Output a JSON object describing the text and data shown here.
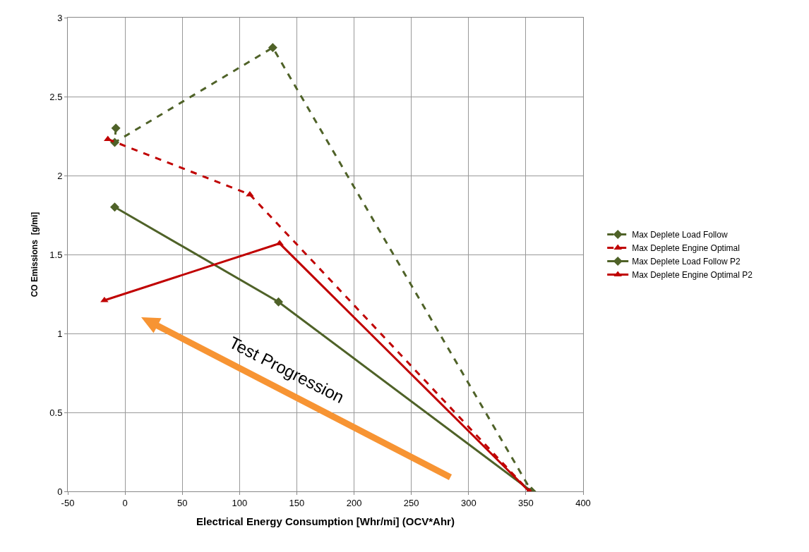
{
  "chart_data": {
    "type": "line",
    "xlabel": "Electrical Energy Consumption [Whr/mi] (OCV*Ahr)",
    "ylabel": "CO Emissions  [g/mi]",
    "xlim": [
      -50,
      400
    ],
    "xticks": [
      -50,
      0,
      50,
      100,
      150,
      200,
      250,
      300,
      350,
      400
    ],
    "ylim": [
      0,
      3
    ],
    "yticks": [
      0,
      0.5,
      1,
      1.5,
      2,
      2.5,
      3
    ],
    "grid": true,
    "legend": "right",
    "series": [
      {
        "name": "Max Deplete Load Follow",
        "color": "#4f6228",
        "marker": "diamond",
        "line_style": "dashed",
        "x": [
          -8,
          -9,
          129,
          355
        ],
        "values": [
          2.3,
          2.21,
          2.81,
          0
        ]
      },
      {
        "name": "Max Deplete Engine Optimal",
        "color": "#c00000",
        "marker": "triangle",
        "line_style": "dashed",
        "x": [
          -15,
          109,
          353
        ],
        "values": [
          2.23,
          1.88,
          0
        ]
      },
      {
        "name": "Max Deplete Load Follow P2",
        "color": "#4f6228",
        "marker": "diamond",
        "line_style": "solid",
        "x": [
          -9,
          134,
          355
        ],
        "values": [
          1.8,
          1.2,
          0
        ]
      },
      {
        "name": "Max Deplete Engine Optimal P2",
        "color": "#c00000",
        "marker": "triangle",
        "line_style": "solid",
        "x": [
          -18,
          135,
          353
        ],
        "values": [
          1.21,
          1.57,
          0
        ]
      }
    ],
    "annotations": [
      "Test Progression"
    ]
  }
}
